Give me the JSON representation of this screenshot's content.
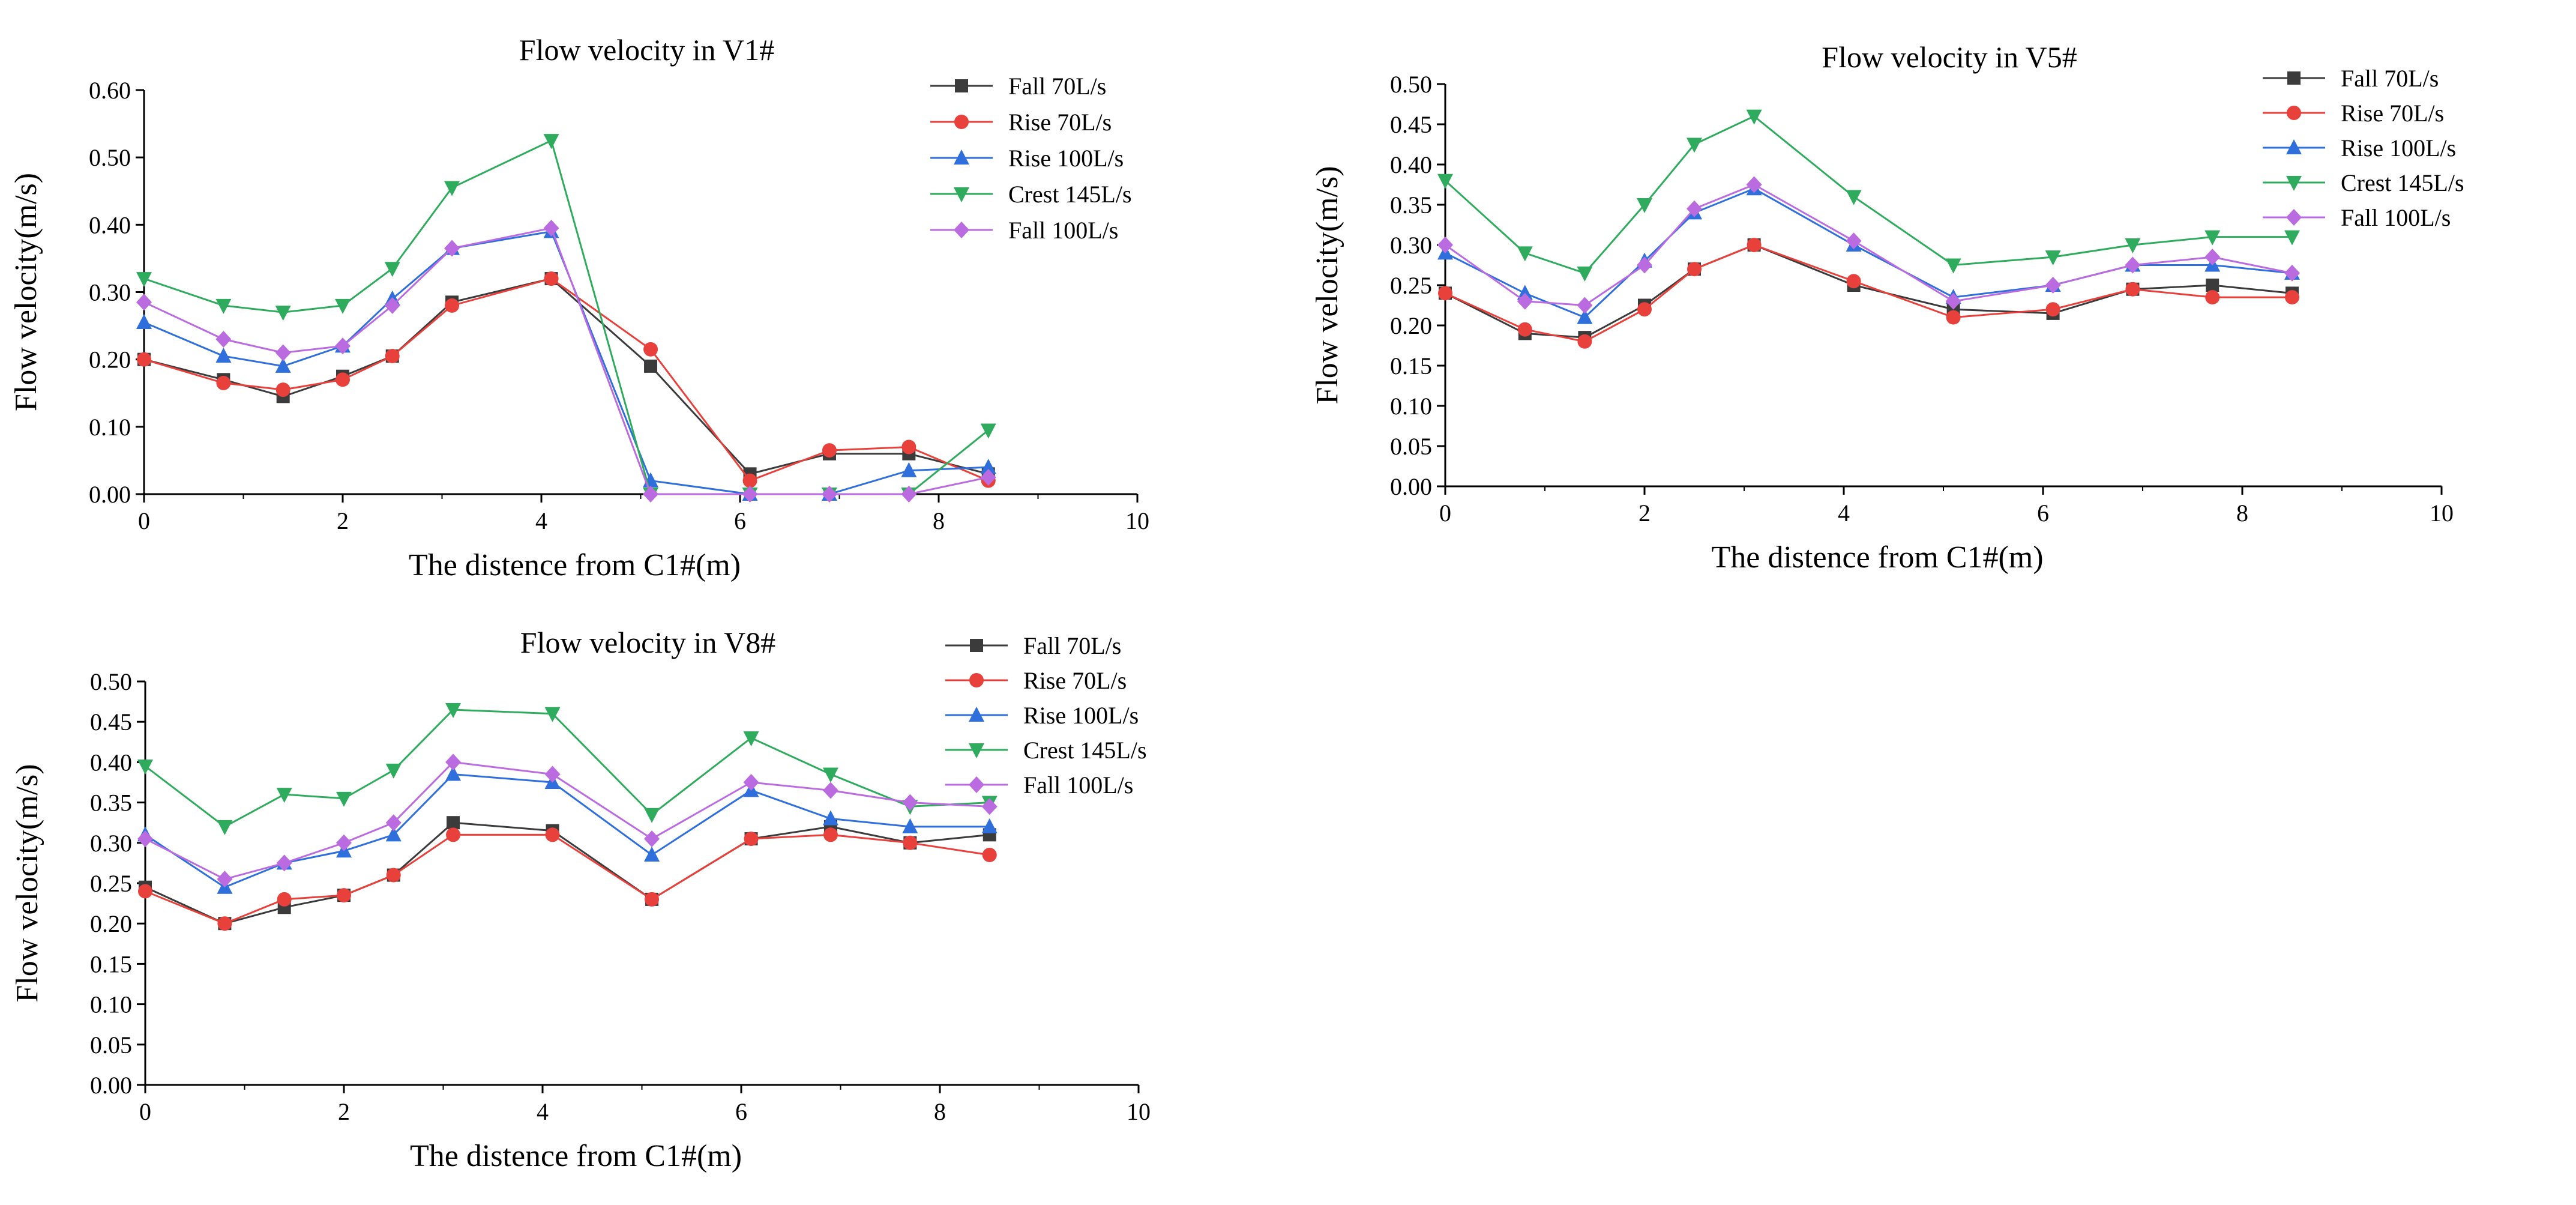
{
  "chart_data": [
    {
      "type": "line",
      "title": "Flow velocity in V1#",
      "xlabel": "The distence from C1#(m)",
      "ylabel": "Flow velocity(m/s)",
      "xlim": [
        0,
        10
      ],
      "ylim": [
        0,
        0.6
      ],
      "xticks": [
        "0",
        "2",
        "4",
        "6",
        "8",
        "10"
      ],
      "yticks": [
        "0.00",
        "0.10",
        "0.20",
        "0.30",
        "0.40",
        "0.50",
        "0.60"
      ],
      "x": [
        0,
        0.8,
        1.4,
        2.0,
        2.5,
        3.1,
        4.1,
        5.1,
        6.1,
        6.9,
        7.7,
        8.5
      ],
      "legend_position": "top-right",
      "series": [
        {
          "name": "Fall 70L/s",
          "color": "#3b3b3b",
          "marker": "square",
          "values": [
            0.2,
            0.17,
            0.145,
            0.175,
            0.205,
            0.285,
            0.32,
            0.19,
            0.03,
            0.06,
            0.06,
            0.03
          ]
        },
        {
          "name": "Rise 70L/s",
          "color": "#e8403b",
          "marker": "circle",
          "values": [
            0.2,
            0.165,
            0.155,
            0.17,
            0.205,
            0.28,
            0.32,
            0.215,
            0.02,
            0.065,
            0.07,
            0.02
          ]
        },
        {
          "name": "Rise 100L/s",
          "color": "#2f6fdb",
          "marker": "triangle-up",
          "values": [
            0.255,
            0.205,
            0.19,
            0.22,
            0.29,
            0.365,
            0.39,
            0.02,
            0.0,
            0.0,
            0.035,
            0.04
          ]
        },
        {
          "name": "Crest 145L/s",
          "color": "#2eab5c",
          "marker": "triangle-down",
          "values": [
            0.32,
            0.28,
            0.27,
            0.28,
            0.335,
            0.455,
            0.525,
            0.0,
            0.0,
            0.0,
            0.0,
            0.095
          ]
        },
        {
          "name": "Fall 100L/s",
          "color": "#bb6be0",
          "marker": "diamond",
          "values": [
            0.285,
            0.23,
            0.21,
            0.22,
            0.28,
            0.365,
            0.395,
            0.0,
            0.0,
            0.0,
            0.0,
            0.025
          ]
        }
      ]
    },
    {
      "type": "line",
      "title": "Flow velocity in V5#",
      "xlabel": "The distence from C1#(m)",
      "ylabel": "Flow velocity(m/s)",
      "xlim": [
        0,
        10
      ],
      "ylim": [
        0,
        0.5
      ],
      "xticks": [
        "0",
        "2",
        "4",
        "6",
        "8",
        "10"
      ],
      "yticks": [
        "0.00",
        "0.05",
        "0.10",
        "0.15",
        "0.20",
        "0.25",
        "0.30",
        "0.35",
        "0.40",
        "0.45",
        "0.50"
      ],
      "x": [
        0,
        0.8,
        1.4,
        2.0,
        2.5,
        3.1,
        4.1,
        5.1,
        6.1,
        6.9,
        7.7,
        8.5
      ],
      "legend_position": "top-right",
      "series": [
        {
          "name": "Fall 70L/s",
          "color": "#3b3b3b",
          "marker": "square",
          "values": [
            0.24,
            0.19,
            0.185,
            0.225,
            0.27,
            0.3,
            0.25,
            0.22,
            0.215,
            0.245,
            0.25,
            0.24
          ]
        },
        {
          "name": "Rise 70L/s",
          "color": "#e8403b",
          "marker": "circle",
          "values": [
            0.24,
            0.195,
            0.18,
            0.22,
            0.27,
            0.3,
            0.255,
            0.21,
            0.22,
            0.245,
            0.235,
            0.235
          ]
        },
        {
          "name": "Rise 100L/s",
          "color": "#2f6fdb",
          "marker": "triangle-up",
          "values": [
            0.29,
            0.24,
            0.21,
            0.28,
            0.34,
            0.37,
            0.3,
            0.235,
            0.25,
            0.275,
            0.275,
            0.265
          ]
        },
        {
          "name": "Crest 145L/s",
          "color": "#2eab5c",
          "marker": "triangle-down",
          "values": [
            0.38,
            0.29,
            0.265,
            0.35,
            0.425,
            0.46,
            0.36,
            0.275,
            0.285,
            0.3,
            0.31,
            0.31
          ]
        },
        {
          "name": "Fall 100L/s",
          "color": "#bb6be0",
          "marker": "diamond",
          "values": [
            0.3,
            0.23,
            0.225,
            0.275,
            0.345,
            0.375,
            0.305,
            0.23,
            0.25,
            0.275,
            0.285,
            0.265
          ]
        }
      ]
    },
    {
      "type": "line",
      "title": "Flow velocity in V8#",
      "xlabel": "The distence from C1#(m)",
      "ylabel": "Flow velocity(m/s)",
      "xlim": [
        0,
        10
      ],
      "ylim": [
        0,
        0.5
      ],
      "xticks": [
        "0",
        "2",
        "4",
        "6",
        "8",
        "10"
      ],
      "yticks": [
        "0.00",
        "0.05",
        "0.10",
        "0.15",
        "0.20",
        "0.25",
        "0.30",
        "0.35",
        "0.40",
        "0.45",
        "0.50"
      ],
      "x": [
        0,
        0.8,
        1.4,
        2.0,
        2.5,
        3.1,
        4.1,
        5.1,
        6.1,
        6.9,
        7.7,
        8.5
      ],
      "legend_position": "top-right",
      "series": [
        {
          "name": "Fall 70L/s",
          "color": "#3b3b3b",
          "marker": "square",
          "values": [
            0.245,
            0.2,
            0.22,
            0.235,
            0.26,
            0.325,
            0.315,
            0.23,
            0.305,
            0.32,
            0.3,
            0.31
          ]
        },
        {
          "name": "Rise 70L/s",
          "color": "#e8403b",
          "marker": "circle",
          "values": [
            0.24,
            0.2,
            0.23,
            0.235,
            0.26,
            0.31,
            0.31,
            0.23,
            0.305,
            0.31,
            0.3,
            0.285
          ]
        },
        {
          "name": "Rise 100L/s",
          "color": "#2f6fdb",
          "marker": "triangle-up",
          "values": [
            0.31,
            0.245,
            0.275,
            0.29,
            0.31,
            0.385,
            0.375,
            0.285,
            0.365,
            0.33,
            0.32,
            0.32
          ]
        },
        {
          "name": "Crest 145L/s",
          "color": "#2eab5c",
          "marker": "triangle-down",
          "values": [
            0.395,
            0.32,
            0.36,
            0.355,
            0.39,
            0.465,
            0.46,
            0.335,
            0.43,
            0.385,
            0.345,
            0.35
          ]
        },
        {
          "name": "Fall 100L/s",
          "color": "#bb6be0",
          "marker": "diamond",
          "values": [
            0.305,
            0.255,
            0.275,
            0.3,
            0.325,
            0.4,
            0.385,
            0.305,
            0.375,
            0.365,
            0.35,
            0.345
          ]
        }
      ]
    }
  ]
}
